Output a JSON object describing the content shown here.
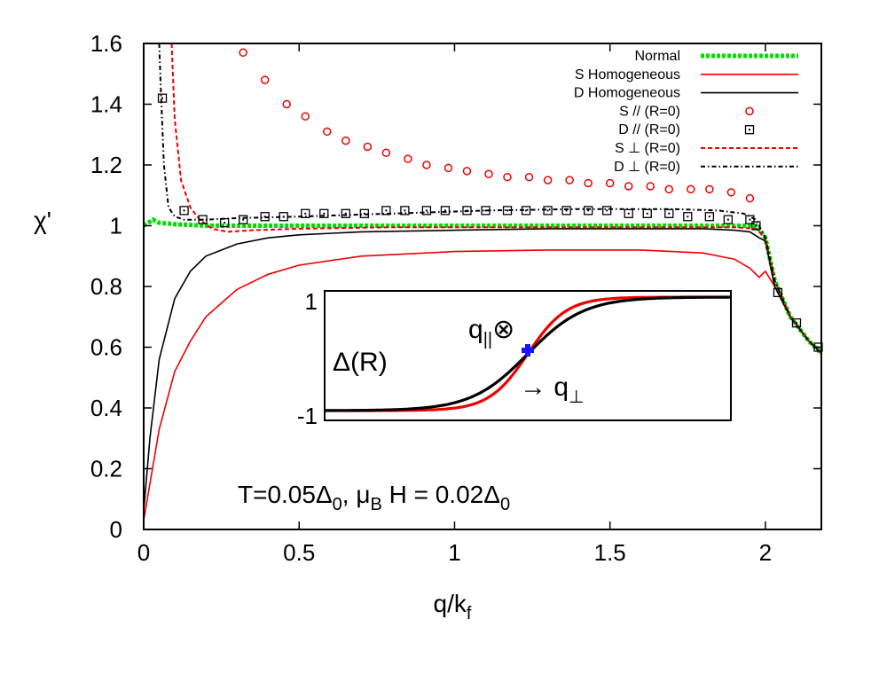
{
  "chart_data": {
    "type": "line",
    "title": "",
    "xlabel": "q/k",
    "xlabel_sub": "f",
    "ylabel": "χ'",
    "xlim": [
      0,
      2.18
    ],
    "ylim": [
      0,
      1.6
    ],
    "xticks": [
      "0",
      "0.5",
      "1",
      "1.5",
      "2"
    ],
    "yticks": [
      "0",
      "0.2",
      "0.4",
      "0.6",
      "0.8",
      "1",
      "1.2",
      "1.4",
      "1.6"
    ],
    "legend_position": "top-right",
    "annotation": {
      "parts": [
        "T=0.05Δ",
        "0",
        ",  μ",
        "B",
        " H = 0.02Δ",
        "0"
      ]
    },
    "series": [
      {
        "name": "Normal",
        "style": "dotted-thick",
        "color": "#00dd00",
        "x": [
          0.0,
          0.03,
          0.05,
          0.1,
          0.2,
          0.3,
          0.5,
          0.8,
          1.0,
          1.3,
          1.6,
          1.9,
          1.97,
          2.0,
          2.03,
          2.08,
          2.14,
          2.18
        ],
        "y": [
          1.0,
          1.02,
          1.01,
          1.005,
          1.0,
          1.0,
          1.0,
          1.0,
          1.0,
          1.0,
          1.0,
          1.0,
          1.0,
          0.96,
          0.82,
          0.7,
          0.62,
          0.58
        ]
      },
      {
        "name": "S Homogeneous",
        "style": "solid",
        "color": "#ee0000",
        "x": [
          0.0,
          0.02,
          0.05,
          0.1,
          0.15,
          0.2,
          0.3,
          0.4,
          0.5,
          0.7,
          1.0,
          1.3,
          1.6,
          1.8,
          1.9,
          1.95,
          1.98,
          2.0,
          2.03,
          2.08,
          2.14,
          2.18
        ],
        "y": [
          0.03,
          0.15,
          0.33,
          0.52,
          0.62,
          0.7,
          0.79,
          0.84,
          0.87,
          0.9,
          0.915,
          0.92,
          0.92,
          0.91,
          0.89,
          0.86,
          0.83,
          0.85,
          0.8,
          0.7,
          0.62,
          0.58
        ]
      },
      {
        "name": "D Homogeneous",
        "style": "solid",
        "color": "#000000",
        "x": [
          0.0,
          0.02,
          0.05,
          0.1,
          0.15,
          0.2,
          0.3,
          0.4,
          0.5,
          0.7,
          1.0,
          1.3,
          1.6,
          1.8,
          1.9,
          1.95,
          1.98,
          2.0,
          2.03,
          2.08,
          2.14,
          2.18
        ],
        "y": [
          0.06,
          0.3,
          0.56,
          0.76,
          0.85,
          0.9,
          0.94,
          0.96,
          0.97,
          0.98,
          0.985,
          0.99,
          0.99,
          0.99,
          0.985,
          0.98,
          0.96,
          0.95,
          0.8,
          0.7,
          0.62,
          0.58
        ]
      },
      {
        "name": "S // (R=0)",
        "style": "circles",
        "color": "#ee0000",
        "x": [
          0.32,
          0.39,
          0.46,
          0.52,
          0.59,
          0.65,
          0.72,
          0.78,
          0.85,
          0.91,
          0.98,
          1.04,
          1.11,
          1.17,
          1.24,
          1.3,
          1.37,
          1.43,
          1.5,
          1.56,
          1.63,
          1.69,
          1.76,
          1.82,
          1.89,
          1.95
        ],
        "y": [
          1.57,
          1.48,
          1.4,
          1.36,
          1.31,
          1.28,
          1.26,
          1.24,
          1.22,
          1.2,
          1.19,
          1.18,
          1.17,
          1.16,
          1.16,
          1.15,
          1.15,
          1.14,
          1.14,
          1.13,
          1.13,
          1.12,
          1.12,
          1.12,
          1.11,
          1.09
        ]
      },
      {
        "name": "D // (R=0)",
        "style": "squares",
        "color": "#000000",
        "x": [
          0.06,
          0.13,
          0.19,
          0.26,
          0.32,
          0.39,
          0.45,
          0.52,
          0.58,
          0.65,
          0.71,
          0.78,
          0.84,
          0.91,
          0.97,
          1.04,
          1.1,
          1.17,
          1.23,
          1.3,
          1.36,
          1.43,
          1.49,
          1.56,
          1.62,
          1.69,
          1.75,
          1.82,
          1.88,
          1.95,
          1.97,
          2.04,
          2.1,
          2.17
        ],
        "y": [
          1.42,
          1.05,
          1.02,
          1.01,
          1.02,
          1.03,
          1.03,
          1.04,
          1.04,
          1.04,
          1.04,
          1.05,
          1.05,
          1.05,
          1.05,
          1.05,
          1.05,
          1.05,
          1.05,
          1.05,
          1.05,
          1.05,
          1.05,
          1.04,
          1.04,
          1.04,
          1.03,
          1.03,
          1.02,
          1.02,
          1.0,
          0.78,
          0.68,
          0.6
        ]
      },
      {
        "name": "S ⊥ (R=0)",
        "style": "dashed",
        "color": "#ee0000",
        "x": [
          0.09,
          0.1,
          0.12,
          0.15,
          0.18,
          0.22,
          0.27,
          0.35,
          0.5,
          0.8,
          1.2,
          1.6,
          1.9,
          1.97,
          2.0,
          2.03,
          2.08,
          2.14,
          2.18
        ],
        "y": [
          1.6,
          1.35,
          1.15,
          1.06,
          1.02,
          0.99,
          0.98,
          0.985,
          0.99,
          0.995,
          0.995,
          0.995,
          0.995,
          0.99,
          0.96,
          0.82,
          0.7,
          0.62,
          0.58
        ]
      },
      {
        "name": "D ⊥ (R=0)",
        "style": "dashdot",
        "color": "#000000",
        "x": [
          0.05,
          0.055,
          0.065,
          0.08,
          0.1,
          0.13,
          0.2,
          0.3,
          0.5,
          0.8,
          1.1,
          1.4,
          1.7,
          1.85,
          1.93,
          1.97,
          2.0,
          2.03,
          2.08,
          2.14,
          2.18
        ],
        "y": [
          1.6,
          1.45,
          1.2,
          1.06,
          1.03,
          1.02,
          1.02,
          1.025,
          1.03,
          1.04,
          1.05,
          1.055,
          1.055,
          1.05,
          1.04,
          1.02,
          0.96,
          0.82,
          0.7,
          0.62,
          0.58
        ]
      }
    ],
    "inset": {
      "ylabel": "Δ(R)",
      "yticks": [
        "1",
        "-1"
      ],
      "label_parallel": "q",
      "label_parallel_sub": "||",
      "label_parallel_symbol": "⊗",
      "label_perp_arrow": "→ q",
      "label_perp_sub": "⊥",
      "curves": [
        {
          "color": "#ee0000",
          "steepness": 1.6
        },
        {
          "color": "#000000",
          "steepness": 1.1
        }
      ]
    }
  }
}
